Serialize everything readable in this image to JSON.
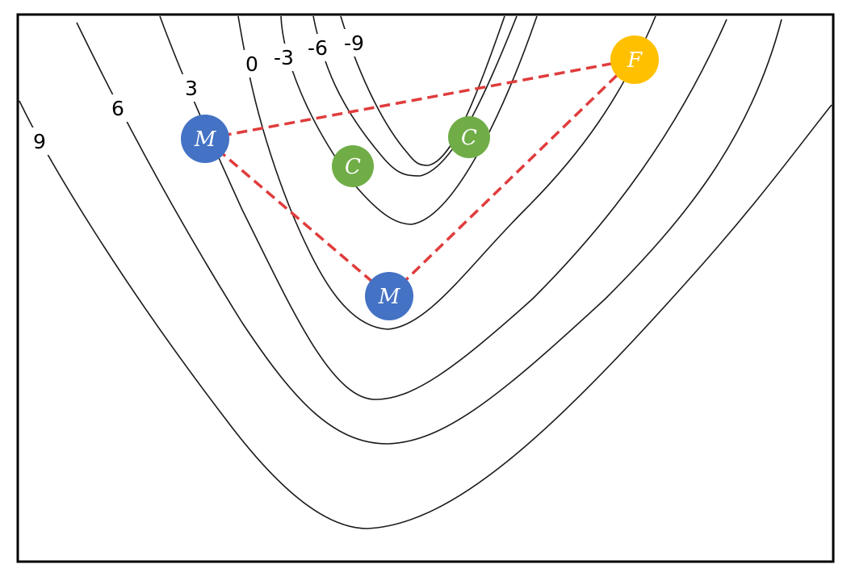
{
  "contours": [
    {
      "level": "9",
      "label": "9"
    },
    {
      "level": "6",
      "label": "6"
    },
    {
      "level": "3",
      "label": "3"
    },
    {
      "level": "0",
      "label": "0"
    },
    {
      "level": "-3",
      "label": "-3"
    },
    {
      "level": "-6",
      "label": "-6"
    },
    {
      "level": "-9",
      "label": "-9"
    }
  ],
  "nodes": [
    {
      "id": "m1",
      "label": "M",
      "color": "#4472C4"
    },
    {
      "id": "m2",
      "label": "M",
      "color": "#4472C4"
    },
    {
      "id": "c1",
      "label": "C",
      "color": "#70AD47"
    },
    {
      "id": "c2",
      "label": "C",
      "color": "#70AD47"
    },
    {
      "id": "f1",
      "label": "F",
      "color": "#FFC000"
    }
  ],
  "links": [
    {
      "from": "m1",
      "to": "f1"
    },
    {
      "from": "m1",
      "to": "m2"
    },
    {
      "from": "m2",
      "to": "f1"
    }
  ],
  "link_color": "#E03C3C"
}
